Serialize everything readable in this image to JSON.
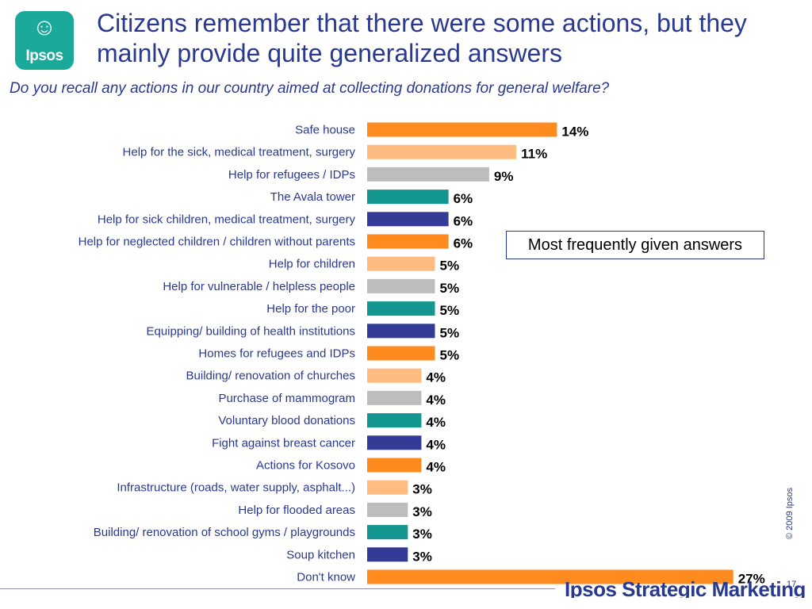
{
  "header": {
    "logo_text": "Ipsos",
    "title": "Citizens remember that there were some actions, but they mainly provide quite generalized answers",
    "question": "Do you recall any actions in our country aimed at collecting donations for general welfare?"
  },
  "callout": {
    "text": "Most frequently given answers"
  },
  "footer": {
    "brand": "Ipsos Strategic Marketing",
    "copyright": "© 2009 Ipsos",
    "page_number": "17"
  },
  "chart_data": {
    "type": "bar",
    "orientation": "horizontal",
    "unit": "%",
    "categories": [
      "Safe house",
      "Help for the sick, medical treatment, surgery",
      "Help for refugees / IDPs",
      "The Avala tower",
      "Help for sick children, medical treatment, surgery",
      "Help for neglected children / children without parents",
      "Help for children",
      "Help for vulnerable / helpless people",
      "Help for the poor",
      "Equipping/ building of health institutions",
      "Homes for refugees and IDPs",
      "Building/ renovation of  churches",
      "Purchase of mammogram",
      "Voluntary blood donations",
      "Fight against breast cancer",
      "Actions for Kosovo",
      "Infrastructure (roads, water supply, asphalt...)",
      "Help for flooded areas",
      "Building/ renovation of  school gyms / playgrounds",
      "Soup kitchen",
      "Don't know"
    ],
    "values": [
      14,
      11,
      9,
      6,
      6,
      6,
      5,
      5,
      5,
      5,
      5,
      4,
      4,
      4,
      4,
      4,
      3,
      3,
      3,
      3,
      27
    ],
    "value_labels": [
      "14%",
      "11%",
      "9%",
      "6%",
      "6%",
      "6%",
      "5%",
      "5%",
      "5%",
      "5%",
      "5%",
      "4%",
      "4%",
      "4%",
      "4%",
      "4%",
      "3%",
      "3%",
      "3%",
      "3%",
      "27%"
    ],
    "bar_colors": [
      "#ff8a1e",
      "#ffbb80",
      "#bdbdbd",
      "#12968f",
      "#333b96"
    ],
    "xlim": [
      0,
      28
    ],
    "grid": false,
    "legend": "none"
  }
}
